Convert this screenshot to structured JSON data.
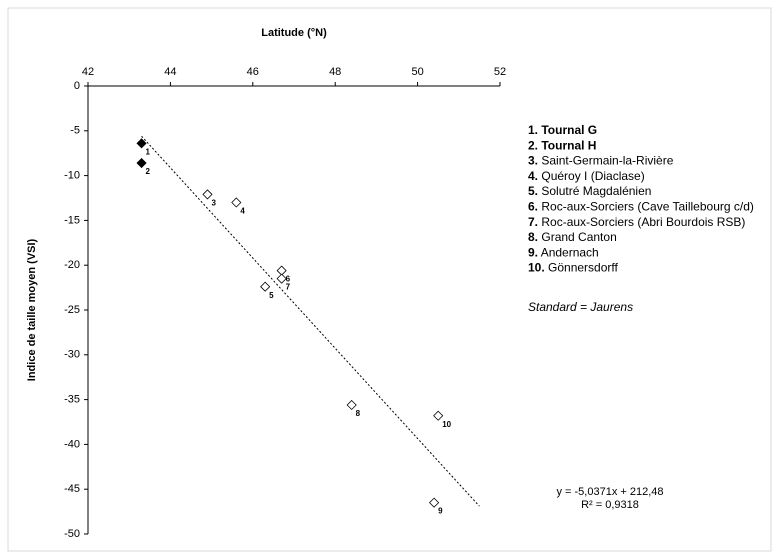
{
  "chart_data": {
    "type": "scatter",
    "x_label": "Latitude (°N)",
    "y_label": "Indice de taille moyen (VSI)",
    "xlim": [
      42,
      52
    ],
    "xticks": [
      42,
      44,
      46,
      48,
      50,
      52
    ],
    "ylim": [
      -50,
      0
    ],
    "yticks": [
      0,
      -5,
      -10,
      -15,
      -20,
      -25,
      -30,
      -35,
      -40,
      -45,
      -50
    ],
    "points": {
      "x": [
        43.3,
        43.3,
        44.9,
        45.6,
        46.3,
        46.7,
        46.7,
        48.4,
        50.4,
        50.5
      ],
      "y": [
        -6.4,
        -8.6,
        -12.1,
        -13.0,
        -22.4,
        -20.6,
        -21.5,
        -35.6,
        -46.5,
        -36.8
      ],
      "labels": [
        "1",
        "2",
        "3",
        "4",
        "5",
        "6",
        "7",
        "8",
        "9",
        "10"
      ],
      "filled": [
        true,
        true,
        false,
        false,
        false,
        false,
        false,
        false,
        false,
        false
      ],
      "color": "#000000"
    },
    "trendline": {
      "x": [
        43.3,
        51.5
      ],
      "y": [
        -5.6,
        -46.9
      ]
    },
    "legend": {
      "items": [
        {
          "number": "1.",
          "label": "Tournal G",
          "bold": true
        },
        {
          "number": "2.",
          "label": "Tournal H",
          "bold": true
        },
        {
          "number": "3.",
          "label": "Saint-Germain-la-Rivière",
          "bold": false
        },
        {
          "number": "4.",
          "label": "Quéroy I (Diaclase)",
          "bold": false
        },
        {
          "number": "5.",
          "label": "Solutré Magdalénien",
          "bold": false
        },
        {
          "number": "6.",
          "label": "Roc-aux-Sorciers (Cave Taillebourg c/d)",
          "bold": false
        },
        {
          "number": "7.",
          "label": "Roc-aux-Sorciers (Abri Bourdois RSB)",
          "bold": false
        },
        {
          "number": "8.",
          "label": "Grand Canton",
          "bold": false
        },
        {
          "number": "9.",
          "label": "Andernach",
          "bold": false
        },
        {
          "number": "10.",
          "label": "Gönnersdorff",
          "bold": false
        }
      ]
    },
    "standard": "Standard = Jaurens",
    "equation": "y = -5,0371x + 212,48",
    "r_squared": "R² = 0,9318"
  }
}
